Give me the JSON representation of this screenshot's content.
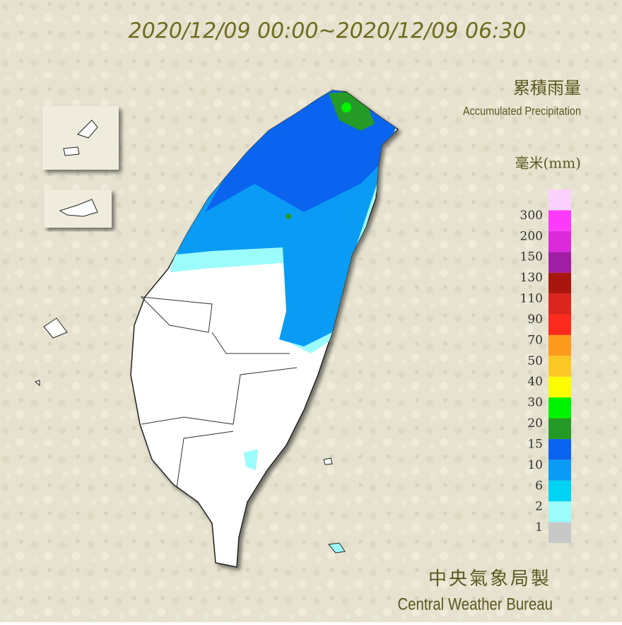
{
  "header": {
    "title": "2020/12/09 00:00~2020/12/09 06:30"
  },
  "legend": {
    "title": "累積雨量",
    "subtitle": "Accumulated Precipitation",
    "unit": "毫米(mm)",
    "levels": [
      1,
      2,
      6,
      10,
      15,
      20,
      30,
      40,
      50,
      70,
      90,
      110,
      130,
      150,
      200,
      300
    ],
    "colors": [
      "#c8c8c8",
      "#9cfcfc",
      "#00d4f4",
      "#0a9cf4",
      "#0a64f0",
      "#269a26",
      "#00f400",
      "#fcfc00",
      "#fcc826",
      "#fc9a1c",
      "#fc2a1c",
      "#da261c",
      "#a8160e",
      "#a01ea6",
      "#da2ada",
      "#fc3afc",
      "#fcd0fc"
    ]
  },
  "footer": {
    "agency": "中央氣象局製",
    "agency_en": "Central Weather Bureau"
  }
}
